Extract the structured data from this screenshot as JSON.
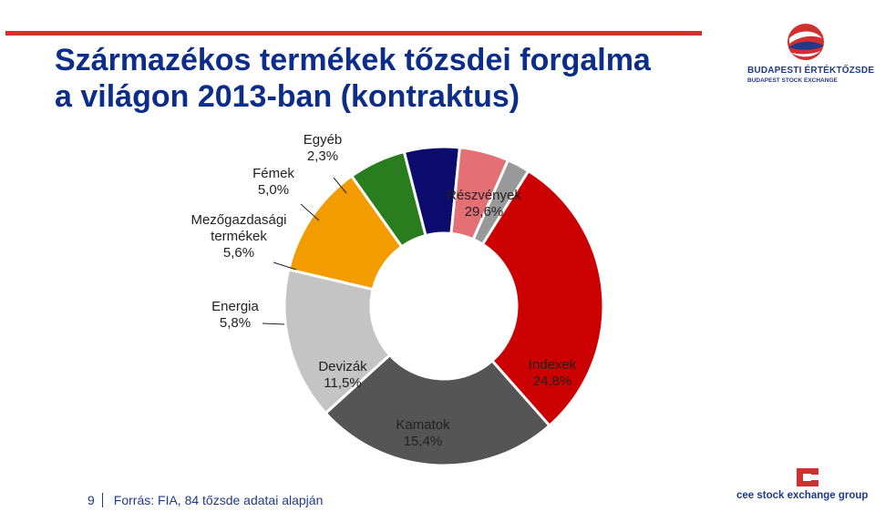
{
  "title_line1": "Származékos termékek tőzsdei forgalma",
  "title_line2": "a világon 2013-ban (kontraktus)",
  "bse_logo": {
    "name": "BUDAPESTI ÉRTÉKTŐZSDE",
    "sub": "BUDAPEST STOCK EXCHANGE"
  },
  "footer": {
    "page_number": "9",
    "source": "Forrás: FIA, 84 tőzsde adatai alapján"
  },
  "cee_logo": {
    "text": "cee stock exchange group"
  },
  "colors": {
    "accent_red": "#d32f2f",
    "title_blue": "#0d2d8a"
  },
  "chart_data": {
    "type": "donut",
    "title": "",
    "unit": "%",
    "segments": [
      {
        "label": "Részvények",
        "value_label": "29,6%",
        "value": 29.6,
        "color": "#cc0000"
      },
      {
        "label": "Indexek",
        "value_label": "24,8%",
        "value": 24.8,
        "color": "#555555"
      },
      {
        "label": "Kamatok",
        "value_label": "15,4%",
        "value": 15.4,
        "color": "#c4c4c4"
      },
      {
        "label": "Devizák",
        "value_label": "11,5%",
        "value": 11.5,
        "color": "#f39c00"
      },
      {
        "label": "Energia",
        "value_label": "5,8%",
        "value": 5.8,
        "color": "#2a7d1f"
      },
      {
        "label": "Mezőgazdasági termékek",
        "value_label": "5,6%",
        "value": 5.6,
        "color": "#0c0b6e"
      },
      {
        "label": "Fémek",
        "value_label": "5,0%",
        "value": 5.0,
        "color": "#e46f75"
      },
      {
        "label": "Egyéb",
        "value_label": "2,3%",
        "value": 2.3,
        "color": "#999999"
      }
    ]
  }
}
